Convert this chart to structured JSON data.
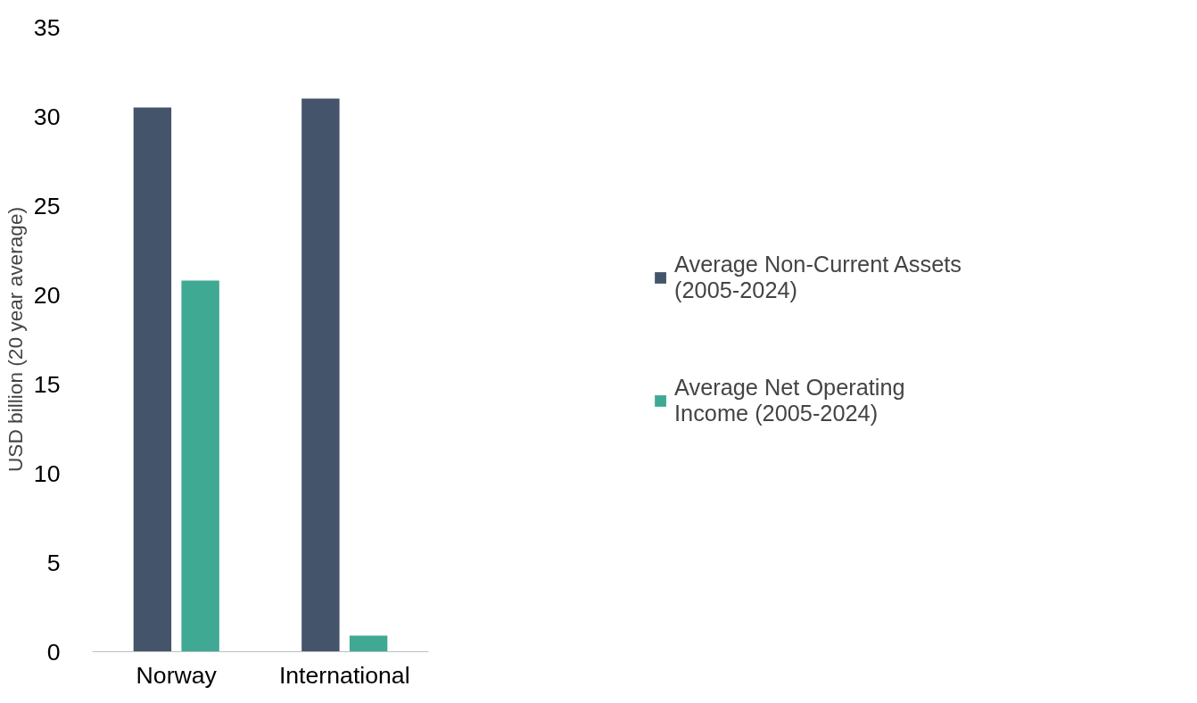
{
  "chart_data": {
    "type": "bar",
    "ylabel": "USD billion (20 year average)",
    "categories": [
      "Norway",
      "International"
    ],
    "series": [
      {
        "name": "Average Non-Current Assets (2005-2024)",
        "color": "#44546a",
        "values": [
          30.5,
          31.0
        ]
      },
      {
        "name": "Average Net Operating Income (2005-2024)",
        "color": "#3fa994",
        "values": [
          20.8,
          0.9
        ]
      }
    ],
    "ylim": [
      0,
      35
    ],
    "yticks": [
      0,
      5,
      10,
      15,
      20,
      25,
      30,
      35
    ],
    "grid": false,
    "legend": "right"
  }
}
